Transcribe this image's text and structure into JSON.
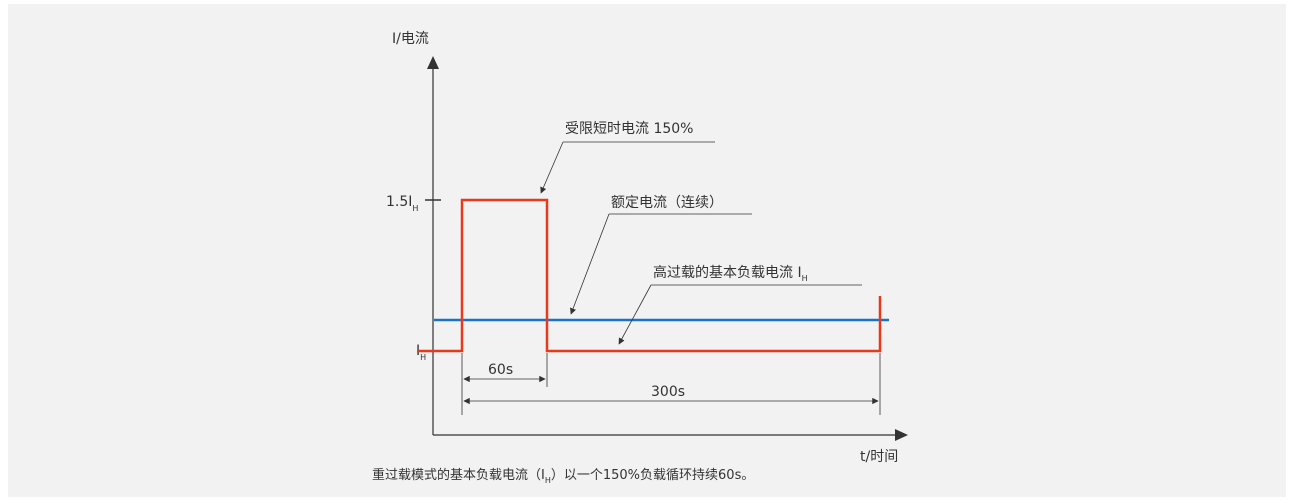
{
  "diagram": {
    "y_axis_label": "I/电流",
    "x_axis_label": "t/时间",
    "tick_15_prefix": "1.5I",
    "tick_ih_main": "I",
    "subscript_h": "H",
    "callout_peak": "受限短时电流 150%",
    "callout_rated": "额定电流（连续）",
    "callout_base": "高过载的基本负载电流 I",
    "dim_60": "60s",
    "dim_300": "300s",
    "caption_part1": "重过载模式的基本负载电流（I",
    "caption_part2": "）以一个150%负载循环持续60s。",
    "colors": {
      "current": "#e8391b",
      "rated": "#1a73c8",
      "axis": "#333333",
      "panel": "#f2f2f2"
    }
  }
}
